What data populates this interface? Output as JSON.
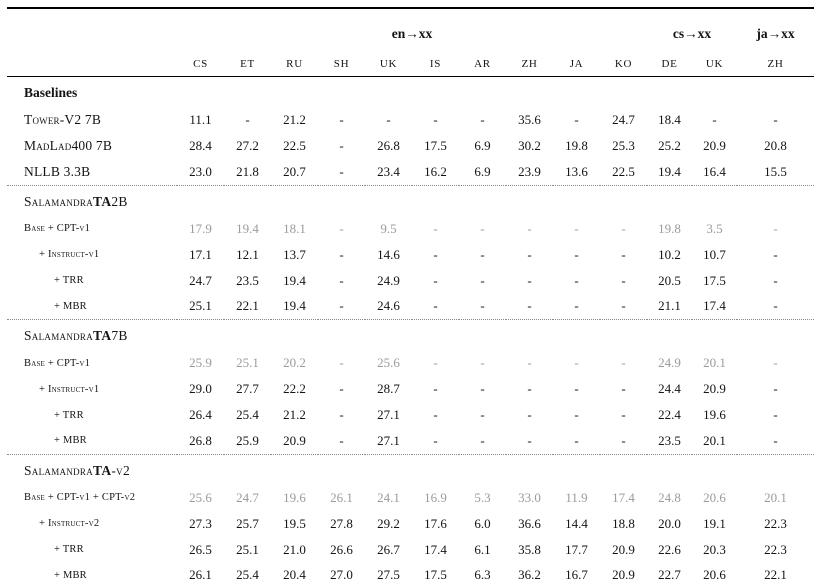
{
  "table": {
    "col_groups": [
      {
        "label": "en→xx",
        "span": 10
      },
      {
        "label": "cs→xx",
        "span": 2
      },
      {
        "label": "ja→xx",
        "span": 1
      }
    ],
    "columns": [
      "CS",
      "ET",
      "RU",
      "SH",
      "UK",
      "IS",
      "AR",
      "ZH",
      "JA",
      "KO",
      "DE",
      "UK",
      "ZH"
    ],
    "sections": [
      {
        "header": {
          "smallcaps": false,
          "parts": [
            {
              "text": "Baselines",
              "bold": true
            }
          ]
        },
        "rows": [
          {
            "label": "Tower-V2 7B",
            "indent": 0,
            "gray": false,
            "values": [
              "11.1",
              "-",
              "21.2",
              "-",
              "-",
              "-",
              "-",
              "35.6",
              "-",
              "24.7",
              "18.4",
              "-",
              "-"
            ]
          },
          {
            "label": "MadLad400 7B",
            "indent": 0,
            "gray": false,
            "values": [
              "28.4",
              "27.2",
              "22.5",
              "-",
              "26.8",
              "17.5",
              "6.9",
              "30.2",
              "19.8",
              "25.3",
              "25.2",
              "20.9",
              "20.8"
            ]
          },
          {
            "label": "NLLB 3.3B",
            "indent": 0,
            "gray": false,
            "values": [
              "23.0",
              "21.8",
              "20.7",
              "-",
              "23.4",
              "16.2",
              "6.9",
              "23.9",
              "13.6",
              "22.5",
              "19.4",
              "16.4",
              "15.5"
            ]
          }
        ]
      },
      {
        "header": {
          "smallcaps": true,
          "parts": [
            {
              "text": "Salamandra",
              "bold": false
            },
            {
              "text": "TA",
              "bold": true
            },
            {
              "text": "2B",
              "bold": false
            }
          ]
        },
        "rows": [
          {
            "label": "Base + CPT-v1",
            "indent": 0,
            "gray": true,
            "values": [
              "17.9",
              "19.4",
              "18.1",
              "-",
              "9.5",
              "-",
              "-",
              "-",
              "-",
              "-",
              "19.8",
              "3.5",
              "-"
            ]
          },
          {
            "label": "+ Instruct-v1",
            "indent": 1,
            "gray": false,
            "values": [
              "17.1",
              "12.1",
              "13.7",
              "-",
              "14.6",
              "-",
              "-",
              "-",
              "-",
              "-",
              "10.2",
              "10.7",
              "-"
            ]
          },
          {
            "label": "+ TRR",
            "indent": 2,
            "gray": false,
            "values": [
              "24.7",
              "23.5",
              "19.4",
              "-",
              "24.9",
              "-",
              "-",
              "-",
              "-",
              "-",
              "20.5",
              "17.5",
              "-"
            ]
          },
          {
            "label": "+ MBR",
            "indent": 2,
            "gray": false,
            "values": [
              "25.1",
              "22.1",
              "19.4",
              "-",
              "24.6",
              "-",
              "-",
              "-",
              "-",
              "-",
              "21.1",
              "17.4",
              "-"
            ]
          }
        ]
      },
      {
        "header": {
          "smallcaps": true,
          "parts": [
            {
              "text": "Salamandra",
              "bold": false
            },
            {
              "text": "TA",
              "bold": true
            },
            {
              "text": "7B",
              "bold": false
            }
          ]
        },
        "rows": [
          {
            "label": "Base + CPT-v1",
            "indent": 0,
            "gray": true,
            "values": [
              "25.9",
              "25.1",
              "20.2",
              "-",
              "25.6",
              "-",
              "-",
              "-",
              "-",
              "-",
              "24.9",
              "20.1",
              "-"
            ]
          },
          {
            "label": "+ Instruct-v1",
            "indent": 1,
            "gray": false,
            "values": [
              "29.0",
              "27.7",
              "22.2",
              "-",
              "28.7",
              "-",
              "-",
              "-",
              "-",
              "-",
              "24.4",
              "20.9",
              "-"
            ]
          },
          {
            "label": "+ TRR",
            "indent": 2,
            "gray": false,
            "values": [
              "26.4",
              "25.4",
              "21.2",
              "-",
              "27.1",
              "-",
              "-",
              "-",
              "-",
              "-",
              "22.4",
              "19.6",
              "-"
            ]
          },
          {
            "label": "+ MBR",
            "indent": 2,
            "gray": false,
            "values": [
              "26.8",
              "25.9",
              "20.9",
              "-",
              "27.1",
              "-",
              "-",
              "-",
              "-",
              "-",
              "23.5",
              "20.1",
              "-"
            ]
          }
        ]
      },
      {
        "header": {
          "smallcaps": true,
          "parts": [
            {
              "text": "Salamandra",
              "bold": false
            },
            {
              "text": "TA",
              "bold": true
            },
            {
              "text": "-v2",
              "bold": false
            }
          ]
        },
        "rows": [
          {
            "label": "Base + CPT-v1 + CPT-v2",
            "indent": 0,
            "gray": true,
            "values": [
              "25.6",
              "24.7",
              "19.6",
              "26.1",
              "24.1",
              "16.9",
              "5.3",
              "33.0",
              "11.9",
              "17.4",
              "24.8",
              "20.6",
              "20.1"
            ]
          },
          {
            "label": "+ Instruct-v2",
            "indent": 1,
            "gray": false,
            "values": [
              "27.3",
              "25.7",
              "19.5",
              "27.8",
              "29.2",
              "17.6",
              "6.0",
              "36.6",
              "14.4",
              "18.8",
              "20.0",
              "19.1",
              "22.3"
            ]
          },
          {
            "label": "+ TRR",
            "indent": 2,
            "gray": false,
            "values": [
              "26.5",
              "25.1",
              "21.0",
              "26.6",
              "26.7",
              "17.4",
              "6.1",
              "35.8",
              "17.7",
              "20.9",
              "22.6",
              "20.3",
              "22.3"
            ]
          },
          {
            "label": "+ MBR",
            "indent": 2,
            "gray": false,
            "values": [
              "26.1",
              "25.4",
              "20.4",
              "27.0",
              "27.5",
              "17.5",
              "6.3",
              "36.2",
              "16.7",
              "20.9",
              "22.7",
              "20.6",
              "22.1"
            ]
          }
        ]
      }
    ]
  },
  "colors": {
    "text": "#141414",
    "gray_row_values": "#9b9b9b",
    "rule": "#000000",
    "dotted_separator": "#8a8a8a",
    "background": "#ffffff"
  }
}
